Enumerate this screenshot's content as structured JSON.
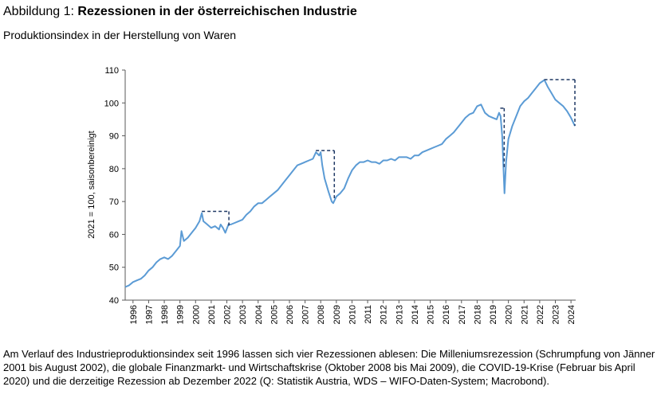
{
  "chart_data": {
    "type": "line",
    "title_prefix": "Abbildung 1:",
    "title": "Rezessionen in der österreichischen Industrie",
    "subtitle": "Produktionsindex in der Herstellung von Waren",
    "y_label": "2021 = 100, saisonbereinigt",
    "note": "Am Verlauf des Industrieproduktionsindex seit 1996 lassen sich vier Rezessionen ablesen: Die Milleniumsrezession (Schrumpfung von Jänner 2001 bis August 2002), die globale Finanzmarkt- und Wirtschaftskrise (Oktober 2008 bis Mai 2009), die COVID-19-Krise (Februar bis April 2020) und die derzeitige Rezession ab Dezember 2022 (Q: Statistik Austria, WDS – WIFO-Daten-System; Macrobond).",
    "x": [
      1996.0,
      1996.25,
      1996.5,
      1996.75,
      1997.0,
      1997.25,
      1997.5,
      1997.75,
      1998.0,
      1998.25,
      1998.5,
      1998.75,
      1999.0,
      1999.25,
      1999.5,
      1999.6,
      1999.75,
      2000.0,
      2000.25,
      2000.5,
      2000.75,
      2000.9,
      2001.0,
      2001.25,
      2001.5,
      2001.75,
      2002.0,
      2002.1,
      2002.25,
      2002.4,
      2002.6,
      2002.75,
      2003.0,
      2003.25,
      2003.5,
      2003.75,
      2004.0,
      2004.25,
      2004.5,
      2004.75,
      2005.0,
      2005.25,
      2005.5,
      2005.75,
      2006.0,
      2006.25,
      2006.5,
      2006.75,
      2007.0,
      2007.25,
      2007.5,
      2007.75,
      2008.0,
      2008.2,
      2008.4,
      2008.5,
      2008.6,
      2008.75,
      2009.0,
      2009.2,
      2009.3,
      2009.5,
      2009.75,
      2010.0,
      2010.25,
      2010.5,
      2010.75,
      2011.0,
      2011.25,
      2011.5,
      2011.75,
      2012.0,
      2012.25,
      2012.5,
      2012.75,
      2013.0,
      2013.25,
      2013.5,
      2013.75,
      2014.0,
      2014.25,
      2014.5,
      2014.75,
      2015.0,
      2015.25,
      2015.5,
      2015.75,
      2016.0,
      2016.25,
      2016.5,
      2016.75,
      2017.0,
      2017.25,
      2017.5,
      2017.75,
      2018.0,
      2018.25,
      2018.5,
      2018.75,
      2019.0,
      2019.25,
      2019.5,
      2019.75,
      2019.9,
      2020.0,
      2020.1,
      2020.25,
      2020.35,
      2020.5,
      2020.75,
      2021.0,
      2021.25,
      2021.5,
      2021.75,
      2022.0,
      2022.25,
      2022.5,
      2022.8,
      2023.0,
      2023.25,
      2023.5,
      2023.75,
      2024.0,
      2024.25,
      2024.5,
      2024.75
    ],
    "series": [
      {
        "name": "Produktionsindex",
        "color": "#5b9bd5",
        "values": [
          44,
          44.5,
          45.5,
          46,
          46.5,
          47.5,
          49,
          50,
          51.5,
          52.5,
          53,
          52.5,
          53.5,
          55,
          56.5,
          61,
          58,
          59,
          60.5,
          62,
          64,
          66.5,
          64,
          63,
          62,
          62.5,
          61.5,
          63,
          62,
          60.5,
          63,
          63,
          63.5,
          64,
          64.5,
          66,
          67,
          68.5,
          69.5,
          69.5,
          70.5,
          71.5,
          72.5,
          73.5,
          75,
          76.5,
          78,
          79.5,
          81,
          81.5,
          82,
          82.5,
          83,
          85,
          84,
          85,
          81,
          77,
          73,
          70,
          69.5,
          71.5,
          72.5,
          74,
          77,
          79.5,
          81,
          82,
          82,
          82.5,
          82,
          82,
          81.5,
          82.5,
          82.5,
          83,
          82.5,
          83.5,
          83.5,
          83.5,
          83,
          84,
          84,
          85,
          85.5,
          86,
          86.5,
          87,
          87.5,
          89,
          90,
          91,
          92.5,
          94,
          95.5,
          96.5,
          97,
          99,
          99.5,
          97,
          96,
          95.5,
          95,
          97,
          96,
          90,
          72.5,
          82,
          89,
          93,
          96,
          99,
          100.5,
          101.5,
          103,
          104.5,
          106,
          107,
          105,
          103,
          101,
          100,
          99,
          97.5,
          95.5,
          93
        ]
      }
    ],
    "recession_markers": [
      {
        "start": 2000.9,
        "end": 2002.63,
        "level": 67,
        "low": 62
      },
      {
        "start": 2008.19,
        "end": 2009.37,
        "level": 85.5,
        "low": 71
      },
      {
        "start": 2019.98,
        "end": 2020.23,
        "level": 98.4,
        "low": 80
      },
      {
        "start": 2022.79,
        "end": 2024.75,
        "level": 107.1,
        "low": 93
      }
    ],
    "marker_color": "#1f3864",
    "xlim": [
      1996,
      2024.8
    ],
    "ylim": [
      40,
      110
    ],
    "yticks": [
      40,
      50,
      60,
      70,
      80,
      90,
      100,
      110
    ],
    "xticks": [
      {
        "value": 1996.5,
        "label": "1996"
      },
      {
        "value": 1997.5,
        "label": "1997"
      },
      {
        "value": 1998.5,
        "label": "1998"
      },
      {
        "value": 1999.5,
        "label": "1999"
      },
      {
        "value": 2000.5,
        "label": "2000"
      },
      {
        "value": 2001.5,
        "label": "2001"
      },
      {
        "value": 2002.5,
        "label": "2002"
      },
      {
        "value": 2003.5,
        "label": "2003"
      },
      {
        "value": 2004.5,
        "label": "2004"
      },
      {
        "value": 2005.5,
        "label": "2005"
      },
      {
        "value": 2006.5,
        "label": "2006"
      },
      {
        "value": 2007.5,
        "label": "2007"
      },
      {
        "value": 2008.5,
        "label": "2008"
      },
      {
        "value": 2009.5,
        "label": "2009"
      },
      {
        "value": 2010.5,
        "label": "2010"
      },
      {
        "value": 2011.5,
        "label": "2011"
      },
      {
        "value": 2012.5,
        "label": "2012"
      },
      {
        "value": 2013.5,
        "label": "2013"
      },
      {
        "value": 2014.5,
        "label": "2014"
      },
      {
        "value": 2015.5,
        "label": "2015"
      },
      {
        "value": 2016.5,
        "label": "2016"
      },
      {
        "value": 2017.5,
        "label": "2017"
      },
      {
        "value": 2018.5,
        "label": "2018"
      },
      {
        "value": 2019.5,
        "label": "2019"
      },
      {
        "value": 2020.5,
        "label": "2020"
      },
      {
        "value": 2021.5,
        "label": "2021"
      },
      {
        "value": 2022.5,
        "label": "2022"
      },
      {
        "value": 2023.5,
        "label": "2023"
      },
      {
        "value": 2024.5,
        "label": "2024"
      }
    ],
    "grid": false
  }
}
